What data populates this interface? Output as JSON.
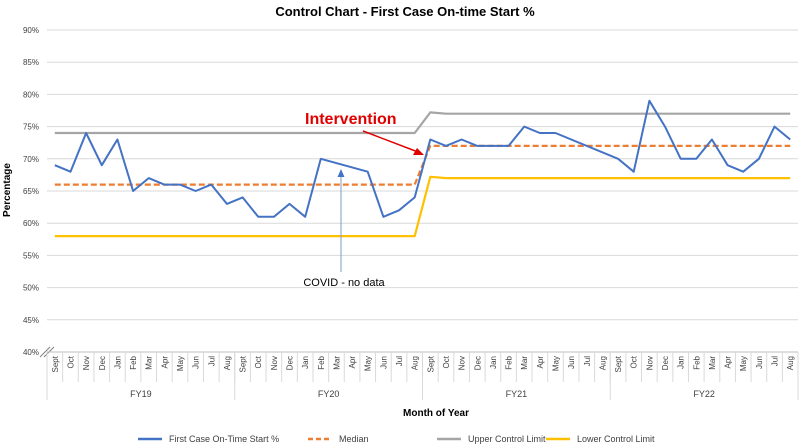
{
  "chart_data": {
    "type": "line",
    "title": "Control Chart - First Case On-time Start %",
    "xlabel": "Month of Year",
    "ylabel": "Percentage",
    "ylim": [
      40,
      90
    ],
    "yticks": [
      "40%",
      "45%",
      "50%",
      "55%",
      "60%",
      "65%",
      "70%",
      "75%",
      "80%",
      "85%",
      "90%"
    ],
    "categories": [
      "Sept",
      "Oct",
      "Nov",
      "Dec",
      "Jan",
      "Feb",
      "Mar",
      "Apr",
      "May",
      "Jun",
      "Jul",
      "Aug",
      "Sept",
      "Oct",
      "Nov",
      "Dec",
      "Jan",
      "Feb",
      "Mar",
      "Apr",
      "May",
      "Jun",
      "Jul",
      "Aug",
      "Sept",
      "Oct",
      "Nov",
      "Dec",
      "Jan",
      "Feb",
      "Mar",
      "Apr",
      "May",
      "Jun",
      "Jul",
      "Aug",
      "Sept",
      "Oct",
      "Nov",
      "Dec",
      "Jan",
      "Feb",
      "Mar",
      "Apr",
      "May",
      "Jun",
      "Jul",
      "Aug"
    ],
    "groups": [
      {
        "label": "FY19",
        "start": 0,
        "end": 11
      },
      {
        "label": "FY20",
        "start": 12,
        "end": 23
      },
      {
        "label": "FY21",
        "start": 24,
        "end": 35
      },
      {
        "label": "FY22",
        "start": 36,
        "end": 47
      }
    ],
    "series": [
      {
        "name": "First Case On-Time Start %",
        "color": "#4472c4",
        "dash": false,
        "values": [
          69,
          68,
          74,
          69,
          73,
          65,
          67,
          66,
          66,
          65,
          66,
          63,
          64,
          61,
          61,
          63,
          61,
          70,
          null,
          null,
          68,
          61,
          62,
          64,
          73,
          72,
          73,
          72,
          72,
          72,
          75,
          74,
          74,
          null,
          null,
          null,
          70,
          68,
          79,
          75,
          70,
          70,
          73,
          69,
          68,
          70,
          75,
          73
        ]
      },
      {
        "name": "Median",
        "color": "#ed7d31",
        "dash": true,
        "values": [
          66,
          66,
          66,
          66,
          66,
          66,
          66,
          66,
          66,
          66,
          66,
          66,
          66,
          66,
          66,
          66,
          66,
          66,
          66,
          66,
          66,
          66,
          66,
          66,
          72,
          72,
          72,
          72,
          72,
          72,
          72,
          72,
          72,
          72,
          72,
          72,
          72,
          72,
          72,
          72,
          72,
          72,
          72,
          72,
          72,
          72,
          72,
          72
        ]
      },
      {
        "name": "Upper Control Limit",
        "color": "#a5a5a5",
        "dash": false,
        "values": [
          74,
          74,
          74,
          74,
          74,
          74,
          74,
          74,
          74,
          74,
          74,
          74,
          74,
          74,
          74,
          74,
          74,
          74,
          74,
          74,
          74,
          74,
          74,
          74,
          77.2,
          77,
          77,
          77,
          77,
          77,
          77,
          77,
          77,
          77,
          77,
          77,
          77,
          77,
          77,
          77,
          77,
          77,
          77,
          77,
          77,
          77,
          77,
          77
        ]
      },
      {
        "name": "Lower Control Limit",
        "color": "#ffc000",
        "dash": false,
        "values": [
          58,
          58,
          58,
          58,
          58,
          58,
          58,
          58,
          58,
          58,
          58,
          58,
          58,
          58,
          58,
          58,
          58,
          58,
          58,
          58,
          58,
          58,
          58,
          58,
          67.2,
          67,
          67,
          67,
          67,
          67,
          67,
          67,
          67,
          67,
          67,
          67,
          67,
          67,
          67,
          67,
          67,
          67,
          67,
          67,
          67,
          67,
          67,
          67
        ]
      }
    ],
    "annotations": {
      "intervention": "Intervention",
      "covid": "COVID - no data"
    },
    "grid": true,
    "legend_position": "bottom"
  }
}
